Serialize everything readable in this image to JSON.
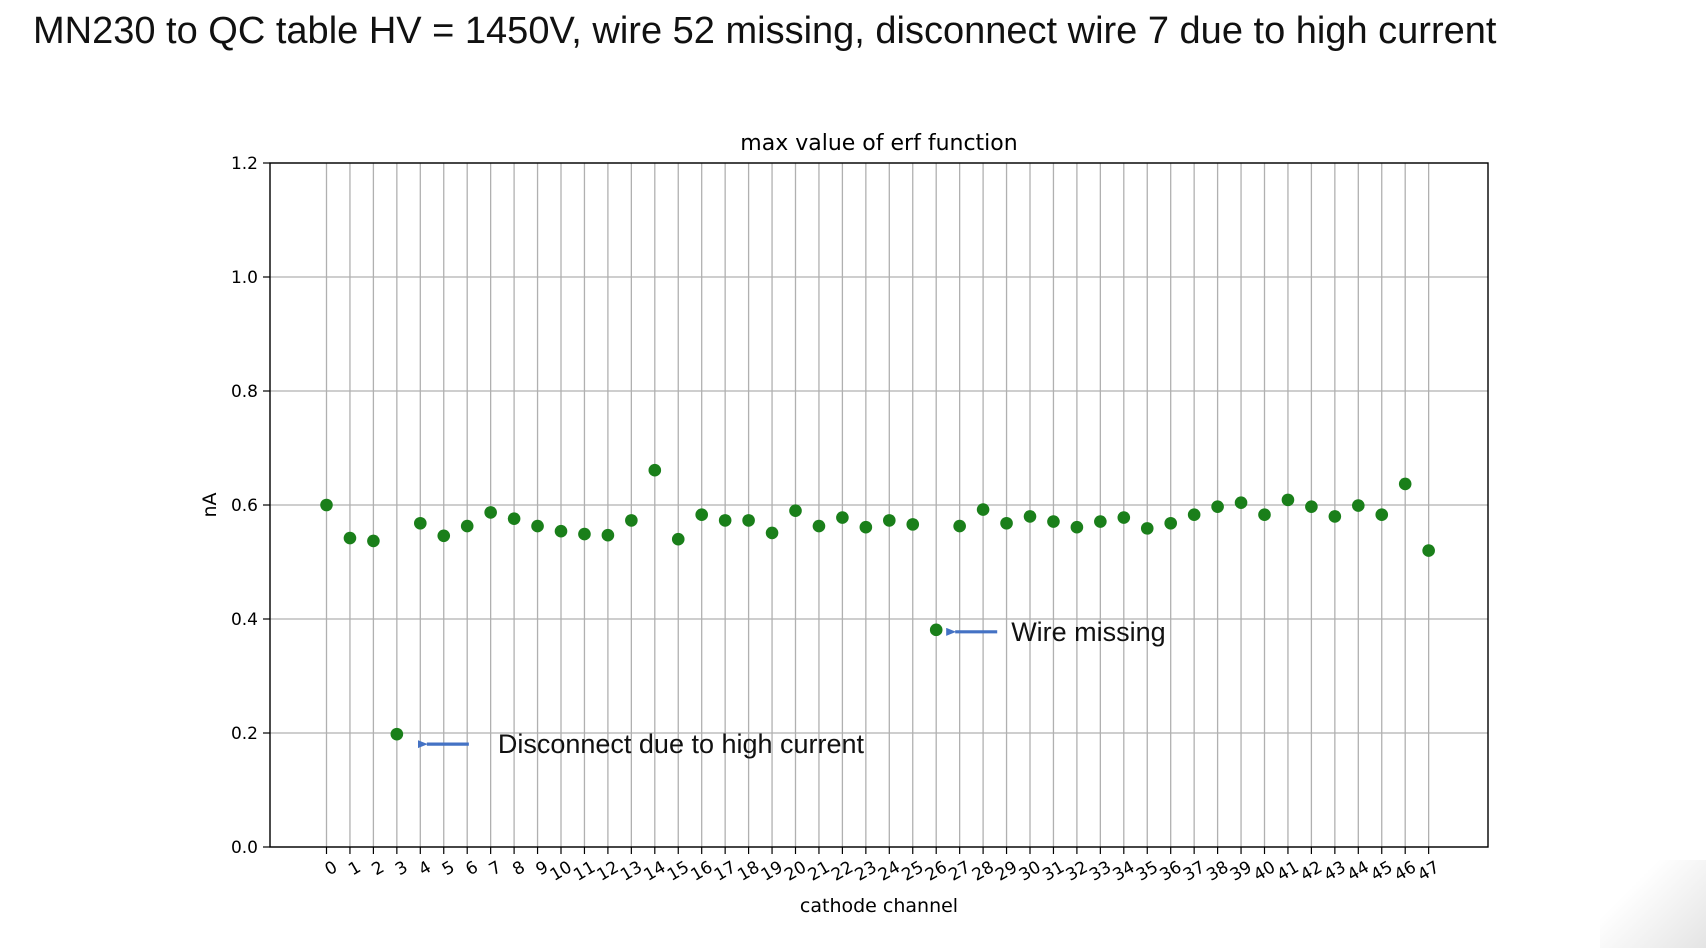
{
  "slide": {
    "title": "MN230 to QC table HV = 1450V, wire 52 missing, disconnect wire 7 due to high current"
  },
  "chart_data": {
    "type": "scatter",
    "title": "max value of erf function",
    "xlabel": "cathode channel",
    "ylabel": "nA",
    "ylim": [
      0.0,
      1.2
    ],
    "yticks": [
      "0.0",
      "0.2",
      "0.4",
      "0.6",
      "0.8",
      "1.0",
      "1.2"
    ],
    "xticks": [
      "0",
      "1",
      "2",
      "3",
      "4",
      "5",
      "6",
      "7",
      "8",
      "9",
      "10",
      "11",
      "12",
      "13",
      "14",
      "15",
      "16",
      "17",
      "18",
      "19",
      "20",
      "21",
      "22",
      "23",
      "24",
      "25",
      "26",
      "27",
      "28",
      "29",
      "30",
      "31",
      "32",
      "33",
      "34",
      "35",
      "36",
      "37",
      "38",
      "39",
      "40",
      "41",
      "42",
      "43",
      "44",
      "45",
      "46",
      "47"
    ],
    "grid": true,
    "marker_color": "#1a7f1a",
    "arrow_color": "#4472c4",
    "series": [
      {
        "name": "",
        "x": [
          0,
          1,
          2,
          3,
          4,
          5,
          6,
          7,
          8,
          9,
          10,
          11,
          12,
          13,
          14,
          15,
          16,
          17,
          18,
          19,
          20,
          21,
          22,
          23,
          24,
          25,
          26,
          27,
          28,
          29,
          30,
          31,
          32,
          33,
          34,
          35,
          36,
          37,
          38,
          39,
          40,
          41,
          42,
          43,
          44,
          45,
          46,
          47
        ],
        "y": [
          0.6,
          0.542,
          0.537,
          0.198,
          0.568,
          0.546,
          0.563,
          0.587,
          0.576,
          0.563,
          0.554,
          0.549,
          0.547,
          0.573,
          0.661,
          0.54,
          0.583,
          0.573,
          0.573,
          0.551,
          0.59,
          0.563,
          0.578,
          0.561,
          0.573,
          0.566,
          0.381,
          0.563,
          0.592,
          0.568,
          0.58,
          0.571,
          0.561,
          0.571,
          0.578,
          0.559,
          0.568,
          0.583,
          0.597,
          0.604,
          0.583,
          0.609,
          0.597,
          0.58,
          0.599,
          0.583,
          0.637,
          0.52
        ]
      }
    ],
    "annotations": [
      {
        "text": "Wire missing",
        "point_index": 26
      },
      {
        "text": "Disconnect due to high current",
        "point_index": 3
      }
    ]
  }
}
